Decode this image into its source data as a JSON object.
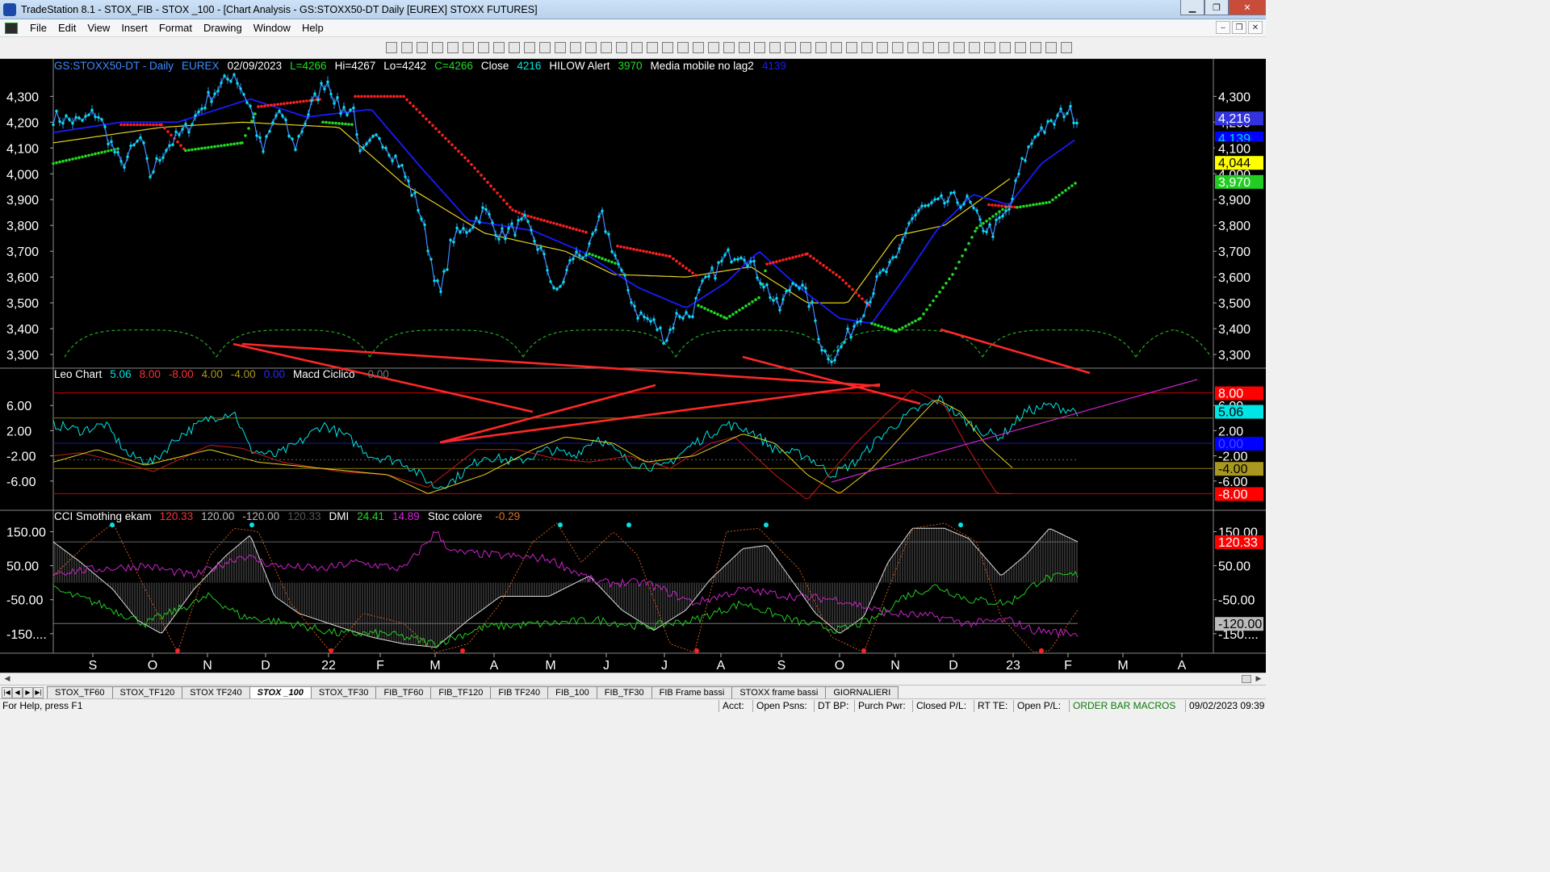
{
  "window": {
    "title": "TradeStation 8.1 - STOX_FIB - STOX _100 - [Chart Analysis - GS:STOXX50-DT  Daily  [EUREX] STOXX FUTURES]",
    "minimize": "▁",
    "maximize": "❐",
    "close": "✕"
  },
  "menu": {
    "items": [
      "File",
      "Edit",
      "View",
      "Insert",
      "Format",
      "Drawing",
      "Window",
      "Help"
    ],
    "mdi": [
      "‒",
      "❐",
      "✕"
    ]
  },
  "colors": {
    "price_bar": "#3c8cff",
    "close_dots": "#00e5e5",
    "hilow_red": "#ff2020",
    "hilow_green": "#20dd20",
    "media_blue": "#1a1aff",
    "yellow_line": "#e6d21e",
    "cycle_green": "#22aa22",
    "trendline_red": "#ff2828",
    "trendline_magenta": "#cc22cc"
  },
  "price_panel": {
    "legend": {
      "symbol": "GS:STOXX50-DT - Daily",
      "exchange": "EUREX",
      "date": "02/09/2023",
      "last": "L=4266",
      "high": "Hi=4267",
      "low": "Lo=4242",
      "close": "C=4266",
      "close_label": "Close",
      "close_value": "4216",
      "hilow_label": "HILOW Alert",
      "hilow_value": "3970",
      "media_label": "Media mobile no lag2",
      "media_value": "4139"
    },
    "y_axis": [
      "4,300",
      "4,200",
      "4,100",
      "4,000",
      "3,900",
      "3,800",
      "3,700",
      "3,600",
      "3,500",
      "3,400",
      "3,300"
    ],
    "y_range": [
      3250,
      4420
    ],
    "value_tags": [
      {
        "text": "4,216",
        "bg": "#3333dd",
        "fg": "#ffffff",
        "value": 4216
      },
      {
        "text": "4,139",
        "bg": "#0000ff",
        "fg": "#00dede",
        "value": 4139
      },
      {
        "text": "4,100",
        "bg": "#000000",
        "fg": "#ffffff",
        "value": 4100
      },
      {
        "text": "4,044",
        "bg": "#ffff00",
        "fg": "#000000",
        "value": 4044
      },
      {
        "text": "3,970",
        "bg": "#22cc22",
        "fg": "#ffffff",
        "value": 3970
      }
    ]
  },
  "macd_panel": {
    "legend": {
      "name": "Leo Chart",
      "v1": "5.06",
      "v2": "8.00",
      "v3": "-8.00",
      "v4": "4.00",
      "v5": "-4.00",
      "v6": "0.00",
      "name2": "Macd Ciclico",
      "v7": "0.00"
    },
    "y_axis": [
      "6.00",
      "2.00",
      "-2.00",
      "-6.00"
    ],
    "y_range": [
      -10,
      10
    ],
    "value_tags": [
      {
        "text": "8.00",
        "bg": "#ff0000",
        "fg": "#ffffff",
        "value": 8
      },
      {
        "text": "5.06",
        "bg": "#00e5e5",
        "fg": "#000000",
        "value": 5.06
      },
      {
        "text": "0.00",
        "bg": "#0000ff",
        "fg": "#4444ff",
        "value": 0
      },
      {
        "text": "-4.00",
        "bg": "#a89820",
        "fg": "#000000",
        "value": -4
      },
      {
        "text": "-8.00",
        "bg": "#ff0000",
        "fg": "#ffffff",
        "value": -8
      }
    ]
  },
  "cci_panel": {
    "legend": {
      "name": "CCI Smothing ekam",
      "v1": "120.33",
      "v2": "120.00",
      "v3": "-120.00",
      "v4": "120.33",
      "name2": "DMI",
      "v5": "24.41",
      "v6": "14.89",
      "name3": "Stoc colore",
      "v7": "-0.29"
    },
    "y_axis": [
      "150.00",
      "50.00",
      "-50.00",
      "-150...."
    ],
    "y_range": [
      -205,
      175
    ],
    "value_tags": [
      {
        "text": "120.33",
        "bg": "#ff0000",
        "fg": "#ffffff",
        "value": 120.33
      },
      {
        "text": "-120.00",
        "bg": "#bbbbbb",
        "fg": "#000000",
        "value": -120
      }
    ]
  },
  "x_axis": [
    "S",
    "O",
    "N",
    "D",
    "22",
    "F",
    "M",
    "A",
    "M",
    "J",
    "J",
    "A",
    "S",
    "O",
    "N",
    "D",
    "23",
    "F",
    "M",
    "A"
  ],
  "tabs": {
    "items": [
      "STOX_TF60",
      "STOX_TF120",
      "STOX TF240",
      "STOX _100",
      "STOX_TF30",
      "FIB_TF60",
      "FIB_TF120",
      "FIB TF240",
      "FIB_100",
      "FIB_TF30",
      "FIB Frame bassi",
      "STOXX frame bassi",
      "GIORNALIERI"
    ],
    "active": "STOX _100"
  },
  "status": {
    "help": "For Help, press F1",
    "acct": "Acct:",
    "open_psns": "Open Psns:",
    "dt_bp": "DT BP:",
    "purch_pwr": "Purch Pwr:",
    "closed_pl": "Closed P/L:",
    "rt_te": "RT TE:",
    "open_pl": "Open P/L:",
    "orderbar": "ORDER BAR  MACROS",
    "datetime": "09/02/2023 09:39"
  }
}
